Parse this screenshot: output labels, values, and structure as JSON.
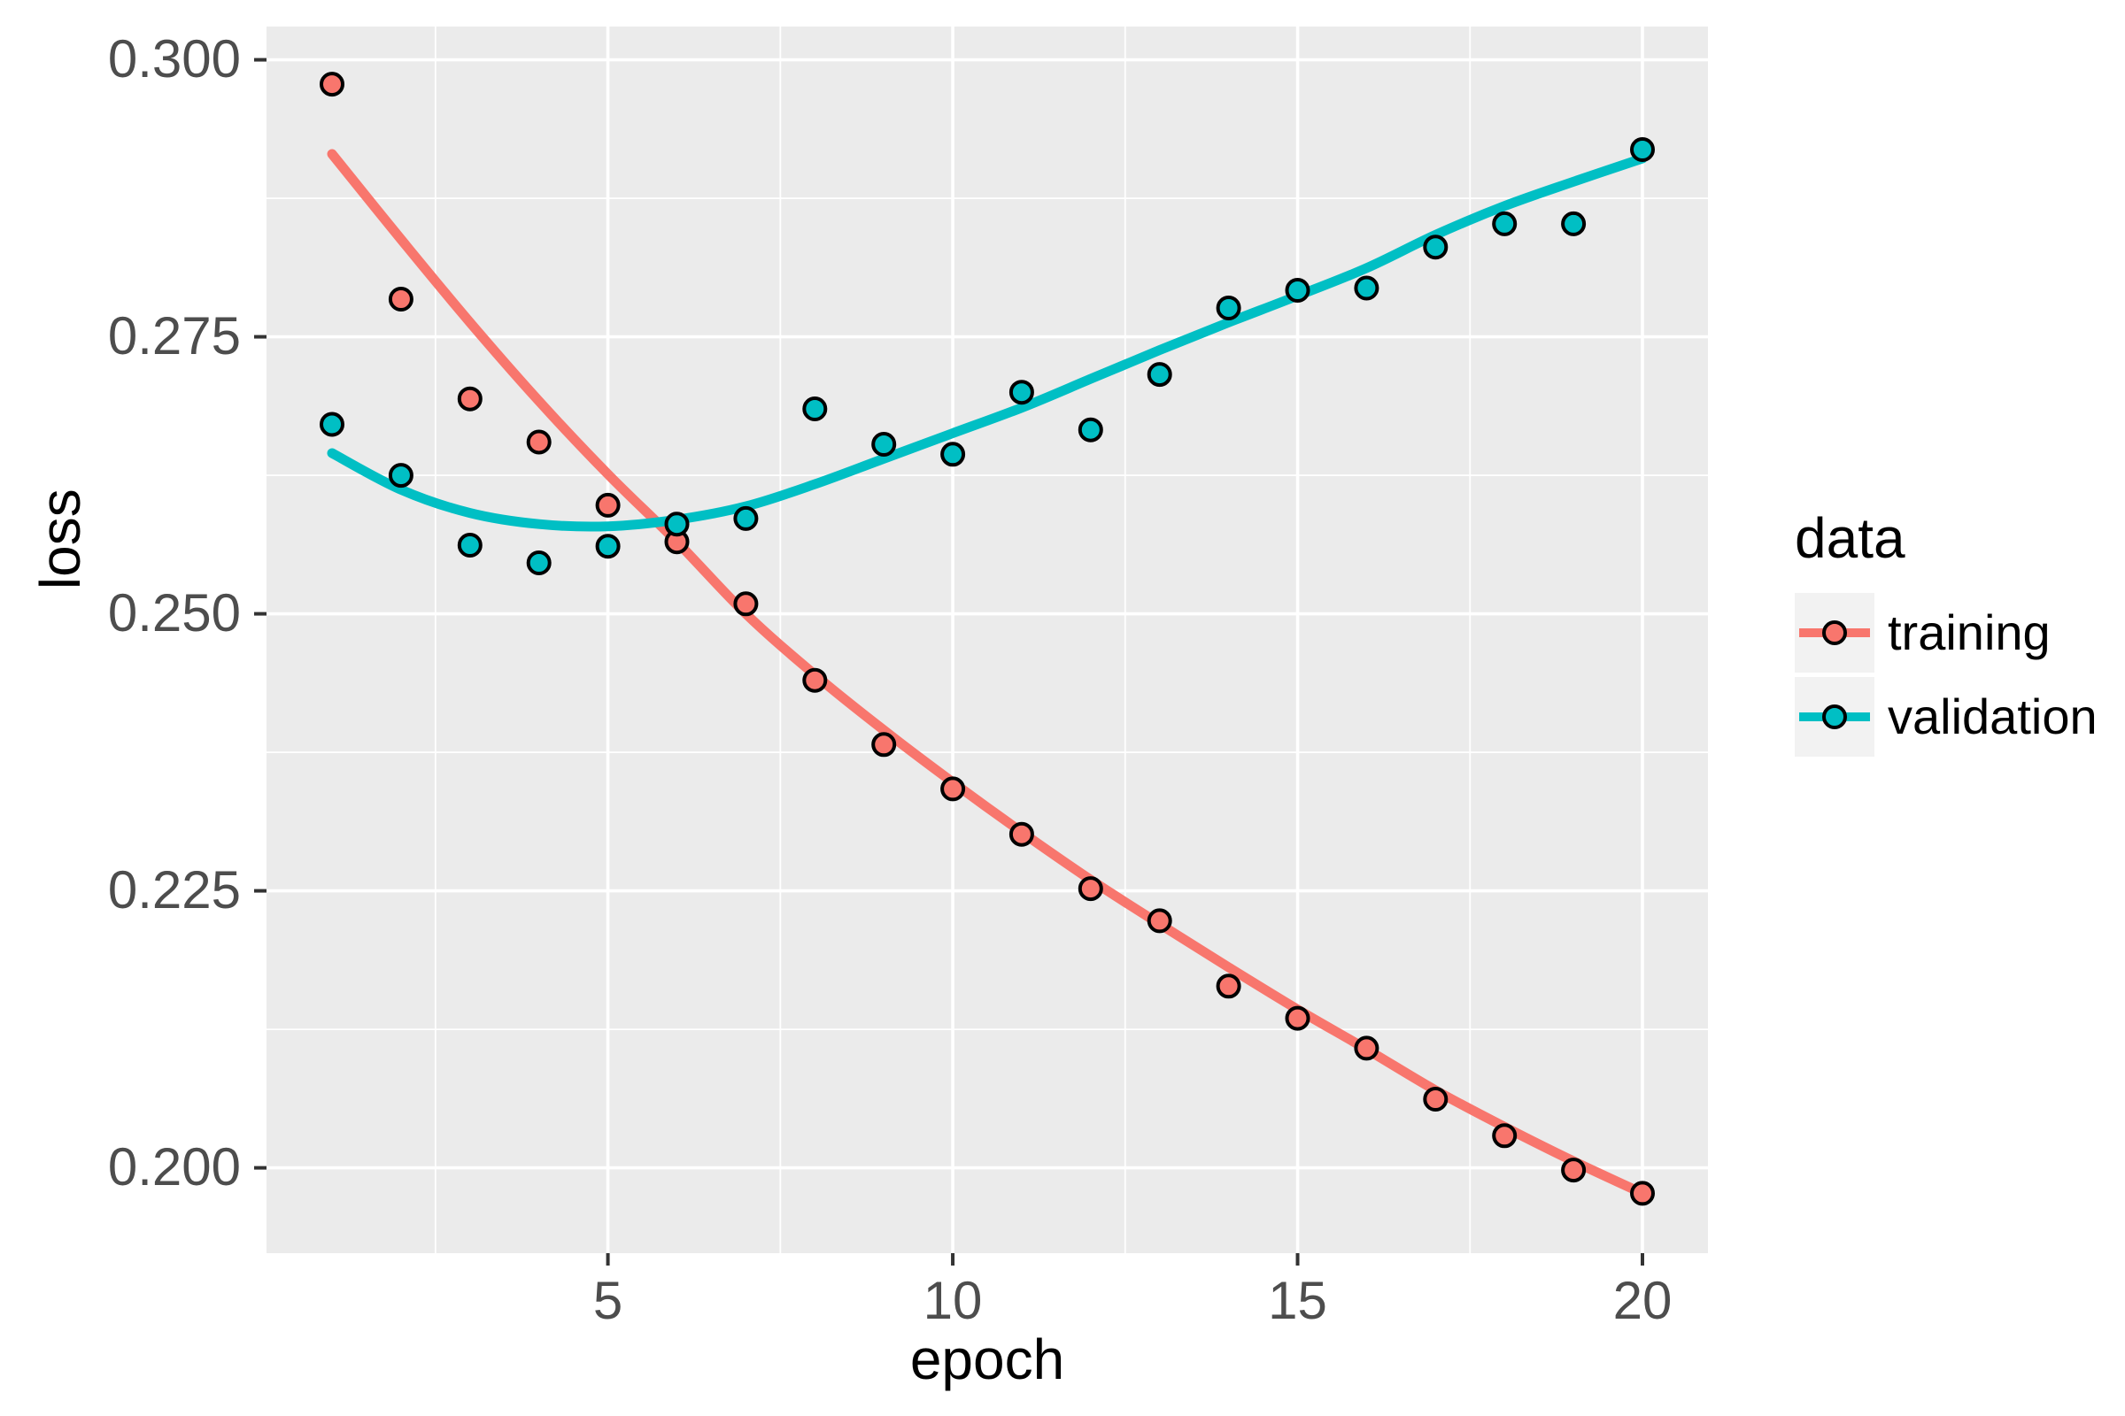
{
  "chart_data": {
    "type": "scatter",
    "title": "",
    "xlabel": "epoch",
    "ylabel": "loss",
    "legend": {
      "title": "data",
      "position": "right",
      "entries": [
        "training",
        "validation"
      ]
    },
    "x_domain": [
      0.05,
      20.95
    ],
    "y_domain": [
      0.1923,
      0.303
    ],
    "x_ticks": [
      "5",
      "10",
      "15",
      "20"
    ],
    "x_minor_breaks": [
      2.5,
      7.5,
      12.5,
      17.5
    ],
    "y_ticks": [
      "0.300",
      "0.275",
      "0.250",
      "0.225",
      "0.200"
    ],
    "y_tick_values": [
      0.3,
      0.275,
      0.25,
      0.225,
      0.2
    ],
    "y_minor_breaks": [
      0.2875,
      0.2625,
      0.2375,
      0.2125
    ],
    "grid": true,
    "x": [
      1,
      2,
      3,
      4,
      5,
      6,
      7,
      8,
      9,
      10,
      11,
      12,
      13,
      14,
      15,
      16,
      17,
      18,
      19,
      20
    ],
    "series": [
      {
        "name": "training",
        "color": "#F8766D",
        "values": [
          0.2978,
          0.2784,
          0.2694,
          0.2655,
          0.2598,
          0.2565,
          0.2509,
          0.244,
          0.2382,
          0.2342,
          0.2301,
          0.2252,
          0.2223,
          0.2164,
          0.2135,
          0.2108,
          0.2062,
          0.2029,
          0.1998,
          0.1977
        ],
        "smooth_line": [
          0.2915,
          0.2838,
          0.2763,
          0.2692,
          0.2626,
          0.2565,
          0.25,
          0.2445,
          0.2395,
          0.2348,
          0.2303,
          0.226,
          0.222,
          0.2181,
          0.2143,
          0.2107,
          0.207,
          0.2037,
          0.2006,
          0.1977
        ]
      },
      {
        "name": "validation",
        "color": "#00BFC4",
        "values": [
          0.2671,
          0.2625,
          0.2562,
          0.2546,
          0.2561,
          0.2581,
          0.2586,
          0.2685,
          0.2653,
          0.2644,
          0.27,
          0.2666,
          0.2716,
          0.2776,
          0.2792,
          0.2794,
          0.2831,
          0.2852,
          0.2852,
          0.2919
        ],
        "smooth_line": [
          0.2645,
          0.2612,
          0.2591,
          0.2581,
          0.2579,
          0.2585,
          0.2597,
          0.2617,
          0.264,
          0.2663,
          0.2686,
          0.2712,
          0.2738,
          0.2763,
          0.2787,
          0.2812,
          0.2842,
          0.2868,
          0.289,
          0.2911
        ]
      }
    ],
    "style": {
      "panel_background": "#EBEBEB",
      "grid_color": "#FFFFFF",
      "legend_key_background": "#F2F2F2",
      "tick_text_color": "#4D4D4D",
      "tick_mark_color": "#333333",
      "point_stroke_color": "#000000"
    }
  }
}
